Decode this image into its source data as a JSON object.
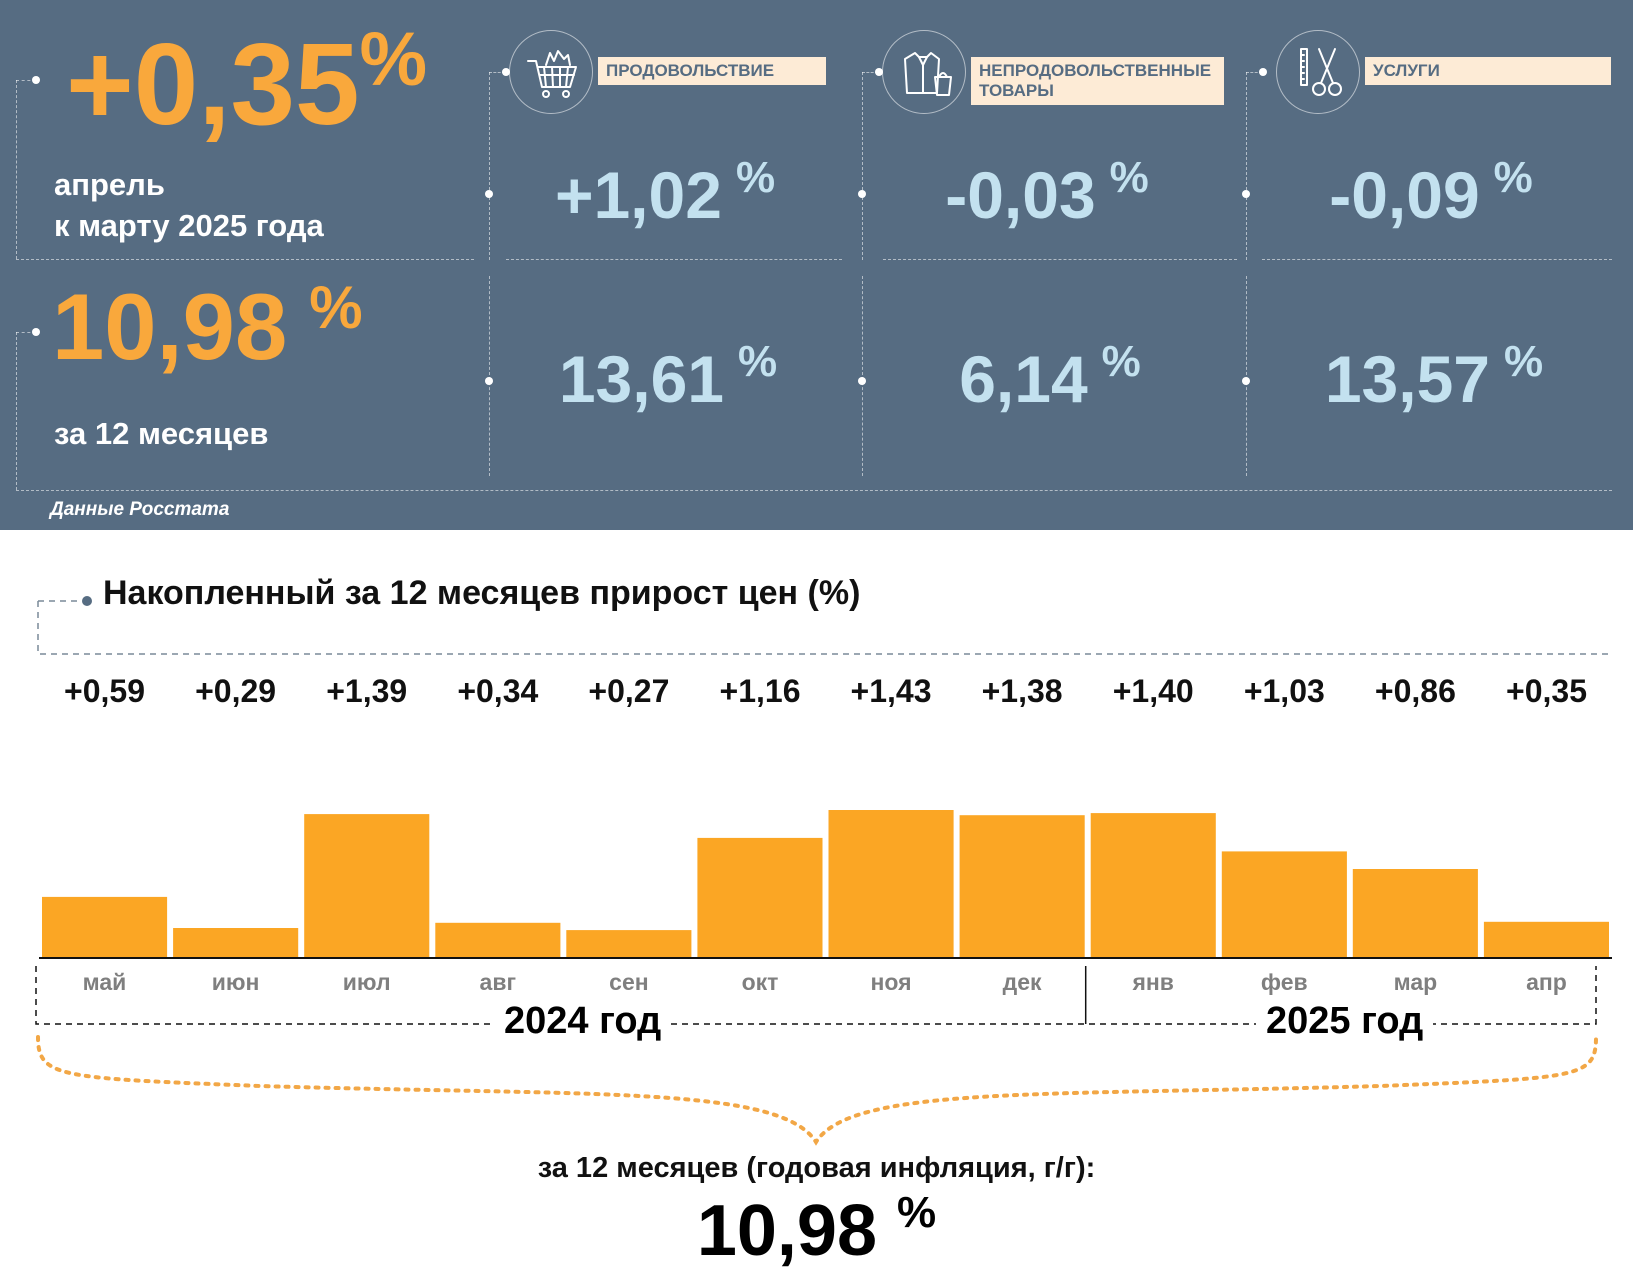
{
  "summary": {
    "monthly": {
      "value": "+0,35",
      "unit": "%",
      "line1": "апрель",
      "line2": "к марту 2025 года"
    },
    "annual": {
      "value": "10,98",
      "unit": "%",
      "label": "за 12 месяцев"
    },
    "source": "Данные Росстата"
  },
  "categories": [
    {
      "label": "ПРОДОВОЛЬСТВИЕ",
      "icon": "shopping-cart-icon",
      "monthly": "+1,02",
      "annual": "13,61",
      "unit": "%"
    },
    {
      "label": "НЕПРОДОВОЛЬСТВЕННЫЕ ТОВАРЫ",
      "icon": "clothing-bag-icon",
      "monthly": "-0,03",
      "annual": "6,14",
      "unit": "%"
    },
    {
      "label": "УСЛУГИ",
      "icon": "scissors-comb-icon",
      "monthly": "-0,09",
      "annual": "13,57",
      "unit": "%"
    }
  ],
  "colors": {
    "panel_bg": "#566c82",
    "accent_orange": "#f9a83c",
    "value_light": "#c3e1ef",
    "label_bg": "#fdebd6",
    "bar": "#fba624"
  },
  "chart_data": {
    "type": "bar",
    "title": "Накопленный за 12 месяцев прирост цен (%)",
    "categories": [
      "май",
      "июн",
      "июл",
      "авг",
      "сен",
      "окт",
      "ноя",
      "дек",
      "янв",
      "фев",
      "мар",
      "апр"
    ],
    "values": [
      0.59,
      0.29,
      1.39,
      0.34,
      0.27,
      1.16,
      1.43,
      1.38,
      1.4,
      1.03,
      0.86,
      0.35
    ],
    "value_labels": [
      "+0,59",
      "+0,29",
      "+1,39",
      "+0,34",
      "+0,27",
      "+1,16",
      "+1,43",
      "+1,38",
      "+1,40",
      "+1,03",
      "+0,86",
      "+0,35"
    ],
    "ylim": [
      0,
      1.43
    ],
    "year_groups": [
      {
        "label": "2024 год",
        "months": 8
      },
      {
        "label": "2025 год",
        "months": 4
      }
    ],
    "grid": false,
    "footer_caption": "за 12 месяцев (годовая инфляция, г/г):",
    "footer_value": "10,98",
    "footer_unit": "%"
  }
}
